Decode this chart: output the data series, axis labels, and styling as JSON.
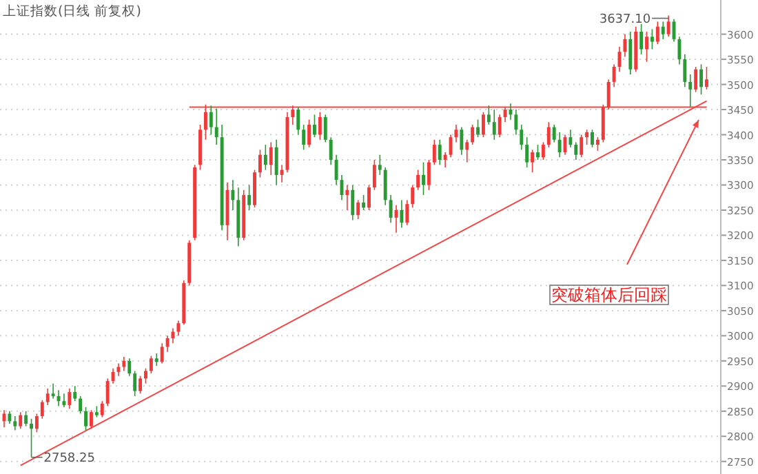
{
  "chart_data": {
    "type": "candlestick",
    "title": "上证指数(日线 前复权)",
    "categories": [
      null,
      null,
      null,
      null,
      null,
      null,
      null,
      null,
      null,
      null,
      null,
      null,
      null,
      null,
      null,
      null,
      null,
      null,
      null,
      null,
      null,
      null,
      null,
      null,
      null,
      null,
      null,
      null,
      null,
      null,
      null,
      null,
      null,
      null,
      null,
      null,
      null,
      null,
      null,
      null,
      null,
      null,
      null,
      null,
      null,
      null,
      null,
      null,
      null,
      null,
      null,
      null,
      null,
      null,
      null,
      null,
      null,
      null,
      null,
      null,
      null,
      null,
      null,
      null,
      null,
      null,
      null,
      null,
      null,
      null,
      null,
      null,
      null,
      null,
      null,
      null,
      null,
      null,
      null,
      null,
      null,
      null,
      null,
      null,
      null,
      null,
      null,
      null,
      null,
      null,
      null,
      null,
      null,
      null,
      null,
      null,
      null,
      null,
      null,
      null,
      null,
      null,
      null,
      null,
      null,
      null,
      null,
      null,
      null,
      null,
      null,
      null,
      null,
      null,
      null,
      null,
      null,
      null,
      null,
      null,
      null,
      null,
      null,
      null,
      null,
      null,
      null,
      null,
      null,
      null
    ],
    "ohlc": [
      [
        2830,
        2852,
        2818,
        2845
      ],
      [
        2845,
        2850,
        2825,
        2830
      ],
      [
        2830,
        2840,
        2812,
        2820
      ],
      [
        2820,
        2848,
        2815,
        2842
      ],
      [
        2842,
        2850,
        2820,
        2825
      ],
      [
        2825,
        2835,
        2758.25,
        2815
      ],
      [
        2815,
        2845,
        2808,
        2840
      ],
      [
        2840,
        2872,
        2835,
        2868
      ],
      [
        2868,
        2895,
        2862,
        2885
      ],
      [
        2885,
        2905,
        2875,
        2880
      ],
      [
        2880,
        2892,
        2860,
        2870
      ],
      [
        2870,
        2885,
        2858,
        2862
      ],
      [
        2862,
        2895,
        2855,
        2888
      ],
      [
        2888,
        2900,
        2870,
        2875
      ],
      [
        2875,
        2880,
        2845,
        2850
      ],
      [
        2850,
        2858,
        2812,
        2820
      ],
      [
        2820,
        2852,
        2815,
        2848
      ],
      [
        2848,
        2860,
        2838,
        2842
      ],
      [
        2842,
        2870,
        2838,
        2865
      ],
      [
        2865,
        2915,
        2860,
        2910
      ],
      [
        2910,
        2935,
        2905,
        2928
      ],
      [
        2928,
        2945,
        2920,
        2938
      ],
      [
        2938,
        2958,
        2930,
        2950
      ],
      [
        2950,
        2955,
        2920,
        2925
      ],
      [
        2925,
        2930,
        2880,
        2890
      ],
      [
        2890,
        2920,
        2885,
        2915
      ],
      [
        2915,
        2935,
        2905,
        2930
      ],
      [
        2930,
        2960,
        2925,
        2955
      ],
      [
        2955,
        2965,
        2940,
        2948
      ],
      [
        2948,
        2985,
        2945,
        2978
      ],
      [
        2978,
        3000,
        2968,
        2995
      ],
      [
        2995,
        3015,
        2985,
        3008
      ],
      [
        3008,
        3030,
        3000,
        3025
      ],
      [
        3025,
        3110,
        3022,
        3105
      ],
      [
        3105,
        3190,
        3100,
        3185
      ],
      [
        3195,
        3340,
        3190,
        3335
      ],
      [
        3340,
        3420,
        3330,
        3410
      ],
      [
        3410,
        3460,
        3390,
        3445
      ],
      [
        3445,
        3458,
        3400,
        3415
      ],
      [
        3415,
        3452,
        3380,
        3395
      ],
      [
        3395,
        3420,
        3210,
        3220
      ],
      [
        3220,
        3305,
        3190,
        3290
      ],
      [
        3290,
        3310,
        3250,
        3270
      ],
      [
        3270,
        3295,
        3178,
        3195
      ],
      [
        3195,
        3290,
        3190,
        3280
      ],
      [
        3280,
        3300,
        3250,
        3260
      ],
      [
        3260,
        3330,
        3255,
        3325
      ],
      [
        3325,
        3370,
        3315,
        3360
      ],
      [
        3360,
        3380,
        3330,
        3340
      ],
      [
        3340,
        3385,
        3320,
        3375
      ],
      [
        3375,
        3390,
        3300,
        3320
      ],
      [
        3320,
        3340,
        3305,
        3330
      ],
      [
        3330,
        3445,
        3325,
        3435
      ],
      [
        3435,
        3458,
        3420,
        3450
      ],
      [
        3450,
        3455,
        3400,
        3410
      ],
      [
        3410,
        3420,
        3370,
        3380
      ],
      [
        3380,
        3430,
        3375,
        3420
      ],
      [
        3420,
        3440,
        3395,
        3400
      ],
      [
        3400,
        3445,
        3390,
        3435
      ],
      [
        3435,
        3440,
        3385,
        3390
      ],
      [
        3390,
        3395,
        3340,
        3350
      ],
      [
        3350,
        3360,
        3300,
        3310
      ],
      [
        3310,
        3320,
        3270,
        3280
      ],
      [
        3280,
        3300,
        3250,
        3290
      ],
      [
        3290,
        3300,
        3230,
        3240
      ],
      [
        3240,
        3270,
        3232,
        3265
      ],
      [
        3265,
        3280,
        3250,
        3255
      ],
      [
        3255,
        3300,
        3250,
        3295
      ],
      [
        3295,
        3350,
        3290,
        3340
      ],
      [
        3340,
        3360,
        3320,
        3330
      ],
      [
        3330,
        3335,
        3260,
        3270
      ],
      [
        3270,
        3280,
        3225,
        3235
      ],
      [
        3235,
        3260,
        3205,
        3250
      ],
      [
        3250,
        3270,
        3215,
        3225
      ],
      [
        3225,
        3270,
        3220,
        3262
      ],
      [
        3262,
        3300,
        3255,
        3295
      ],
      [
        3295,
        3330,
        3290,
        3320
      ],
      [
        3320,
        3345,
        3280,
        3300
      ],
      [
        3300,
        3350,
        3290,
        3345
      ],
      [
        3345,
        3390,
        3340,
        3380
      ],
      [
        3380,
        3390,
        3340,
        3350
      ],
      [
        3350,
        3365,
        3335,
        3360
      ],
      [
        3360,
        3400,
        3355,
        3395
      ],
      [
        3395,
        3420,
        3385,
        3410
      ],
      [
        3410,
        3415,
        3360,
        3370
      ],
      [
        3370,
        3390,
        3345,
        3385
      ],
      [
        3385,
        3420,
        3380,
        3415
      ],
      [
        3415,
        3430,
        3395,
        3400
      ],
      [
        3400,
        3445,
        3395,
        3440
      ],
      [
        3440,
        3458,
        3420,
        3425
      ],
      [
        3425,
        3450,
        3390,
        3400
      ],
      [
        3400,
        3440,
        3395,
        3435
      ],
      [
        3435,
        3455,
        3425,
        3450
      ],
      [
        3450,
        3462,
        3430,
        3440
      ],
      [
        3440,
        3450,
        3400,
        3410
      ],
      [
        3410,
        3420,
        3370,
        3380
      ],
      [
        3380,
        3395,
        3335,
        3345
      ],
      [
        3345,
        3370,
        3325,
        3365
      ],
      [
        3365,
        3380,
        3350,
        3355
      ],
      [
        3355,
        3385,
        3350,
        3380
      ],
      [
        3380,
        3425,
        3375,
        3415
      ],
      [
        3415,
        3420,
        3385,
        3390
      ],
      [
        3390,
        3405,
        3355,
        3365
      ],
      [
        3365,
        3400,
        3360,
        3395
      ],
      [
        3395,
        3410,
        3375,
        3380
      ],
      [
        3380,
        3385,
        3350,
        3360
      ],
      [
        3360,
        3400,
        3355,
        3395
      ],
      [
        3395,
        3410,
        3380,
        3405
      ],
      [
        3405,
        3410,
        3375,
        3380
      ],
      [
        3380,
        3395,
        3368,
        3390
      ],
      [
        3390,
        3460,
        3385,
        3455
      ],
      [
        3455,
        3510,
        3450,
        3505
      ],
      [
        3505,
        3540,
        3495,
        3535
      ],
      [
        3535,
        3575,
        3525,
        3565
      ],
      [
        3565,
        3600,
        3555,
        3590
      ],
      [
        3590,
        3605,
        3520,
        3530
      ],
      [
        3530,
        3615,
        3525,
        3605
      ],
      [
        3605,
        3620,
        3560,
        3570
      ],
      [
        3570,
        3605,
        3545,
        3595
      ],
      [
        3595,
        3610,
        3570,
        3585
      ],
      [
        3585,
        3625,
        3580,
        3615
      ],
      [
        3615,
        3625,
        3590,
        3600
      ],
      [
        3600,
        3637.1,
        3595,
        3625
      ],
      [
        3625,
        3630,
        3585,
        3590
      ],
      [
        3590,
        3595,
        3540,
        3550
      ],
      [
        3550,
        3560,
        3495,
        3505
      ],
      [
        3505,
        3520,
        3455,
        3490
      ],
      [
        3490,
        3535,
        3485,
        3530
      ],
      [
        3530,
        3540,
        3480,
        3495
      ],
      [
        3495,
        3535,
        3490,
        3510
      ]
    ],
    "series": [
      {
        "type": "line",
        "values": [
          null,
          null,
          null,
          null,
          null,
          null,
          null,
          null,
          null,
          null,
          null,
          null,
          null,
          null,
          null,
          null,
          null,
          null,
          null,
          null,
          null,
          null,
          null,
          null,
          null,
          null,
          null,
          null,
          null,
          null,
          null,
          null,
          null,
          null,
          3455,
          null,
          null,
          null,
          null,
          null,
          null,
          null,
          null,
          null,
          null,
          null,
          null,
          null,
          null,
          null,
          null,
          null,
          null,
          null,
          null,
          null,
          null,
          null,
          null,
          null,
          null,
          null,
          null,
          null,
          null,
          null,
          null,
          null,
          null,
          null,
          null,
          null,
          null,
          null,
          null,
          null,
          null,
          null,
          null,
          null,
          null,
          null,
          null,
          null,
          null,
          null,
          null,
          null,
          null,
          null,
          null,
          null,
          null,
          null,
          null,
          null,
          null,
          null,
          null,
          null,
          null,
          null,
          null,
          null,
          null,
          null,
          null,
          null,
          null,
          null,
          null,
          null,
          null,
          null,
          null,
          null,
          null,
          null,
          null,
          null,
          null,
          null,
          null,
          null,
          null,
          null,
          null,
          null,
          null,
          3455
        ],
        "color": "#f04848"
      },
      {
        "type": "line",
        "values": [
          null,
          null,
          null,
          2742,
          null,
          null,
          null,
          null,
          null,
          null,
          null,
          null,
          null,
          null,
          null,
          null,
          null,
          null,
          null,
          null,
          null,
          null,
          null,
          null,
          null,
          null,
          null,
          null,
          null,
          null,
          null,
          null,
          null,
          null,
          null,
          null,
          null,
          null,
          null,
          null,
          null,
          null,
          null,
          null,
          null,
          null,
          null,
          null,
          null,
          null,
          null,
          null,
          null,
          null,
          null,
          null,
          null,
          null,
          null,
          null,
          null,
          null,
          null,
          null,
          null,
          null,
          null,
          null,
          null,
          null,
          null,
          null,
          null,
          null,
          null,
          null,
          null,
          null,
          null,
          null,
          null,
          null,
          null,
          null,
          null,
          null,
          null,
          null,
          null,
          null,
          null,
          null,
          null,
          null,
          null,
          null,
          null,
          null,
          null,
          null,
          null,
          null,
          null,
          null,
          null,
          null,
          null,
          null,
          null,
          null,
          null,
          null,
          null,
          null,
          null,
          null,
          null,
          null,
          null,
          null,
          null,
          null,
          null,
          null,
          null,
          null,
          null,
          null,
          null,
          3467
        ],
        "color": "#f04848"
      }
    ],
    "ylim": [
      2725,
      3668
    ],
    "yticks": [
      2750,
      2800,
      2850,
      2900,
      2950,
      3000,
      3050,
      3100,
      3150,
      3200,
      3250,
      3300,
      3350,
      3400,
      3450,
      3500,
      3550,
      3600
    ],
    "grid": "y",
    "annotations": [
      "3637.10",
      "2758.25",
      "突破箱体后回踩"
    ]
  }
}
